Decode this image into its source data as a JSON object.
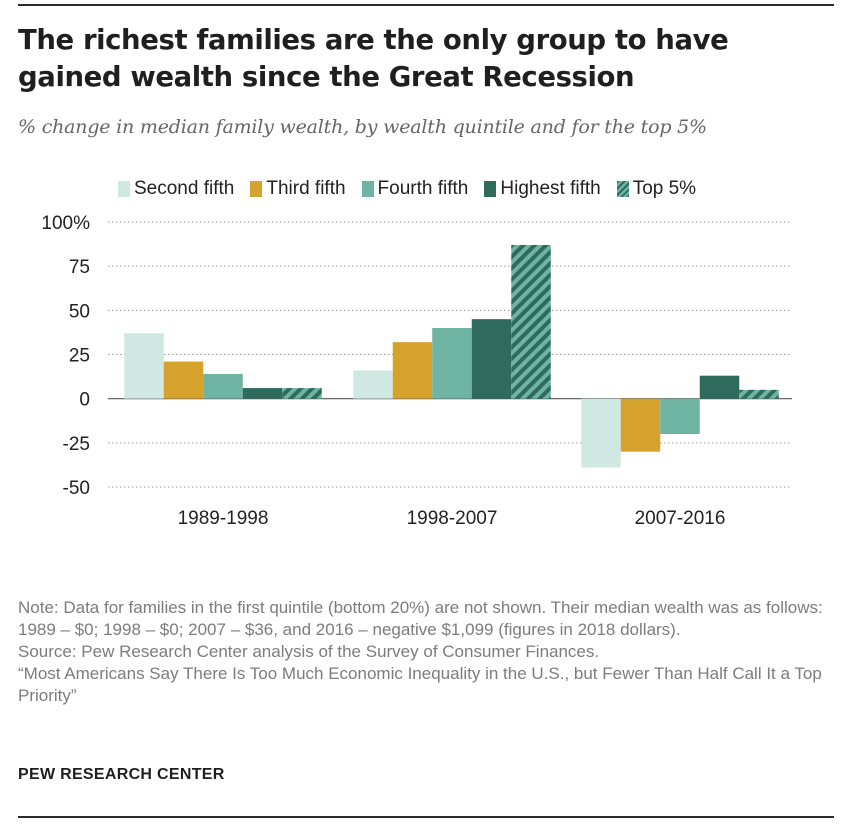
{
  "title": "The richest families are the only group to have gained wealth since the Great Recession",
  "subtitle": "% change in median family wealth, by wealth quintile and for the top 5%",
  "chart_data": {
    "type": "bar",
    "categories": [
      "1989-1998",
      "1998-2007",
      "2007-2016"
    ],
    "series": [
      {
        "name": "Second fifth",
        "values": [
          37,
          16,
          -39
        ],
        "color": "#cfe8e1"
      },
      {
        "name": "Third fifth",
        "values": [
          21,
          32,
          -30
        ],
        "color": "#d4a22d"
      },
      {
        "name": "Fourth fifth",
        "values": [
          14,
          40,
          -20
        ],
        "color": "#6fb4a2"
      },
      {
        "name": "Highest fifth",
        "values": [
          6,
          45,
          13
        ],
        "color": "#2f6b5c"
      },
      {
        "name": "Top 5%",
        "values": [
          6,
          87,
          5
        ],
        "color": "#2f6b5c",
        "pattern": "striped"
      }
    ],
    "yticks": [
      "100%",
      "75",
      "50",
      "25",
      "0",
      "-25",
      "-50"
    ],
    "ylim": [
      -50,
      100
    ],
    "grid": true,
    "legend_position": "top"
  },
  "notes": {
    "note": "Note: Data for families in the first quintile (bottom 20%) are not shown. Their median wealth was as follows: 1989 – $0; 1998 – $0; 2007 – $36, and 2016 – negative $1,099 (figures in 2018 dollars).",
    "source": "Source: Pew Research Center analysis of the Survey of Consumer Finances.",
    "report": "“Most Americans Say There Is Too Much Economic Inequality in the U.S., but Fewer Than Half Call It a Top Priority”"
  },
  "brand": "PEW RESEARCH CENTER"
}
